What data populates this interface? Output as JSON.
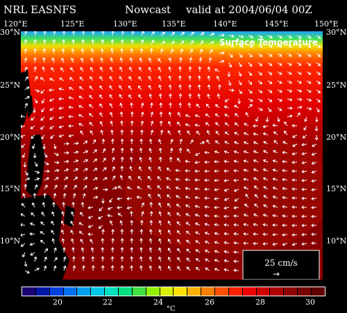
{
  "header": {
    "model": "NRL EASNFS",
    "product": "Nowcast",
    "valid": "valid at 2004/06/04 00Z"
  },
  "map": {
    "field_label": "Surface Temperature",
    "lon_labels": [
      "120°E",
      "125°E",
      "130°E",
      "135°E",
      "140°E",
      "145°E",
      "150°E"
    ],
    "lat_labels_left": [
      "30°N",
      "25°N",
      "20°N",
      "15°N",
      "10°N"
    ],
    "lat_labels_right": [
      "30°N",
      "25°N",
      "20°N",
      "15°N",
      "10°N"
    ],
    "vector_scale": {
      "label": "25 cm/s",
      "arrow": "→"
    },
    "land_color": "#000000",
    "vector_color": "#ffffff",
    "ocean_dominant_color": "#8b0000"
  },
  "colorbar": {
    "ticks": [
      "20",
      "22",
      "24",
      "26",
      "28",
      "30"
    ],
    "unit": "°C",
    "colors": [
      "#1a0070",
      "#0018a8",
      "#0040e0",
      "#0070f0",
      "#00a0f0",
      "#00c8e8",
      "#00e0c0",
      "#00e080",
      "#40e040",
      "#90f000",
      "#d8f000",
      "#ffe000",
      "#ffb000",
      "#ff8000",
      "#ff5000",
      "#ff2000",
      "#f00000",
      "#d00000",
      "#b00000",
      "#900000",
      "#780000",
      "#600000"
    ]
  }
}
